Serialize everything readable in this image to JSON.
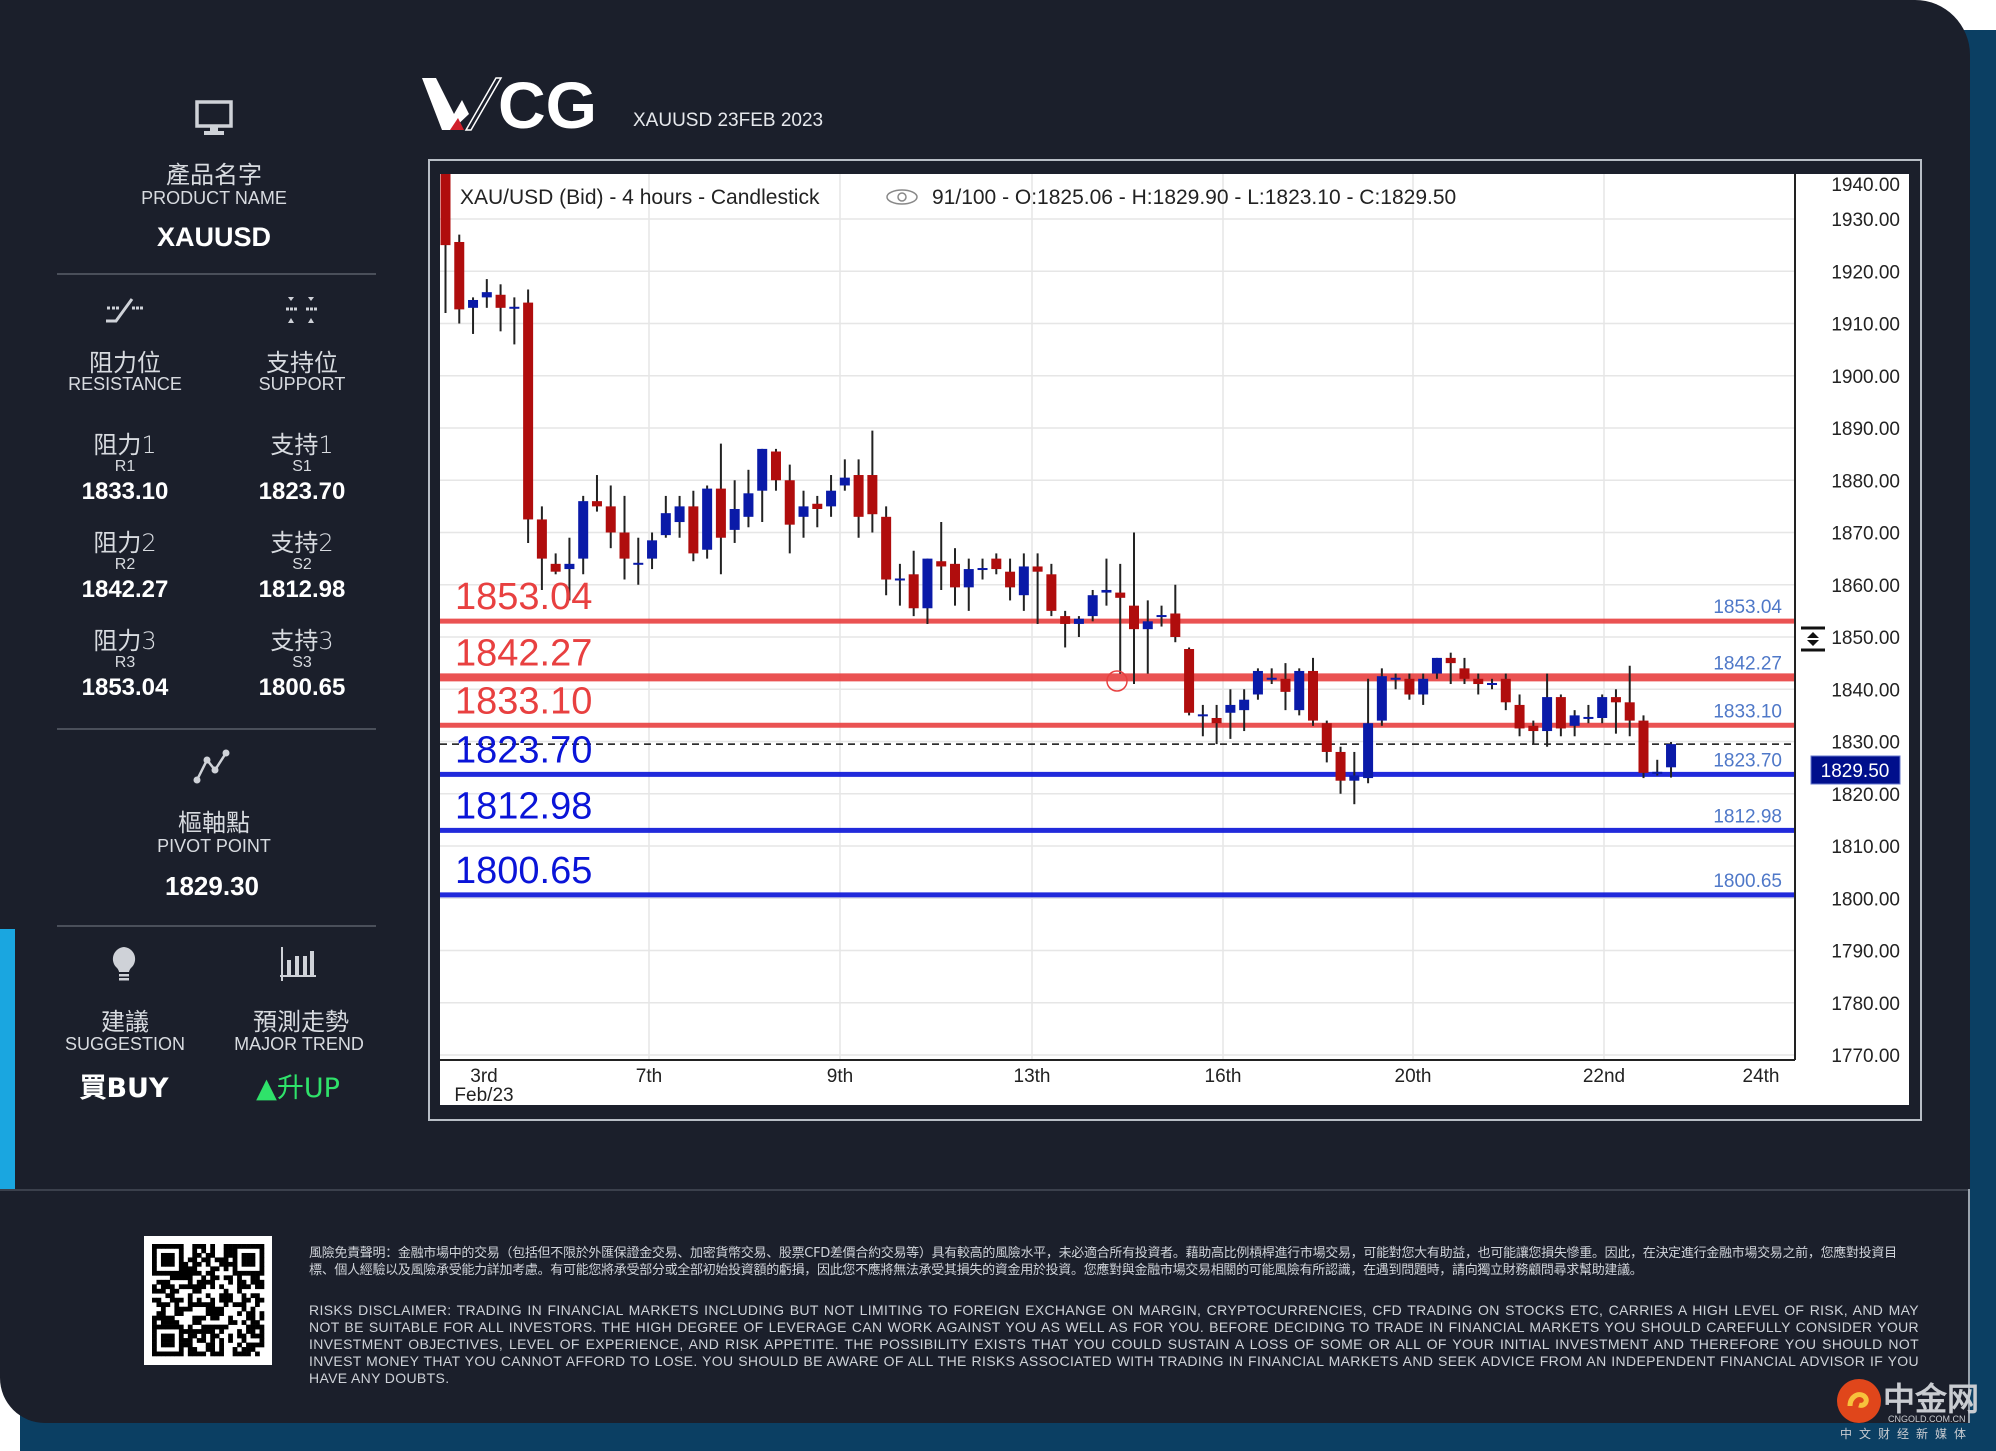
{
  "header": {
    "logo_text": "WCG",
    "subtitle": "XAUUSD 23FEB 2023"
  },
  "product": {
    "label_zh": "產品名字",
    "label_en": "PRODUCT NAME",
    "value": "XAUUSD"
  },
  "resistance": {
    "label_zh": "阻力位",
    "label_en": "RESISTANCE",
    "items": [
      {
        "label_zh": "阻力1",
        "code": "R1",
        "value": "1833.10"
      },
      {
        "label_zh": "阻力2",
        "code": "R2",
        "value": "1842.27"
      },
      {
        "label_zh": "阻力3",
        "code": "R3",
        "value": "1853.04"
      }
    ]
  },
  "support": {
    "label_zh": "支持位",
    "label_en": "SUPPORT",
    "items": [
      {
        "label_zh": "支持1",
        "code": "S1",
        "value": "1823.70"
      },
      {
        "label_zh": "支持2",
        "code": "S2",
        "value": "1812.98"
      },
      {
        "label_zh": "支持3",
        "code": "S3",
        "value": "1800.65"
      }
    ]
  },
  "pivot": {
    "label_zh": "樞軸點",
    "label_en": "PIVOT POINT",
    "value": "1829.30"
  },
  "suggestion": {
    "label_zh": "建議",
    "label_en": "SUGGESTION",
    "value": "買BUY"
  },
  "trend": {
    "label_zh": "預測走勢",
    "label_en": "MAJOR TREND",
    "value": "升UP",
    "color": "#2fe26a"
  },
  "chart_data": {
    "type": "candlestick",
    "title": "XAU/USD (Bid) - 4 hours - Candlestick",
    "info": "91/100 - O:1825.06 - H:1829.90 - L:1823.10 - C:1829.50",
    "ylim": [
      1770,
      1940
    ],
    "y_ticks": [
      "1940.00",
      "1930.00",
      "1920.00",
      "1910.00",
      "1900.00",
      "1890.00",
      "1880.00",
      "1870.00",
      "1860.00",
      "1850.00",
      "1840.00",
      "1830.00",
      "1820.00",
      "1810.00",
      "1800.00",
      "1790.00",
      "1780.00",
      "1770.00"
    ],
    "x_ticks": [
      "3rd",
      "7th",
      "9th",
      "13th",
      "16th",
      "20th",
      "22nd",
      "24th"
    ],
    "x_sub_label": "Feb/23",
    "grid": true,
    "up_color": "#0a1aa8",
    "down_color": "#b00d0d",
    "last_price": "1829.50",
    "levels": [
      {
        "label": "1853.04",
        "value": 1853.04,
        "color": "#e84040"
      },
      {
        "label": "1842.27",
        "value": 1842.27,
        "color": "#e84040"
      },
      {
        "label": "1833.10",
        "value": 1833.1,
        "color": "#e84040"
      },
      {
        "label": "1823.70",
        "value": 1823.7,
        "color": "#0a14d8"
      },
      {
        "label": "1812.98",
        "value": 1812.98,
        "color": "#0a14d8"
      },
      {
        "label": "1800.65",
        "value": 1800.65,
        "color": "#0a14d8"
      }
    ],
    "ohlc": [
      [
        1940,
        1941,
        1912,
        1925
      ],
      [
        1925.6,
        1927,
        1910,
        1912.7
      ],
      [
        1913,
        1915,
        1908,
        1914.5
      ],
      [
        1915,
        1918.5,
        1913,
        1916
      ],
      [
        1915.5,
        1917.5,
        1908.5,
        1913
      ],
      [
        1913,
        1915,
        1906,
        1913.2
      ],
      [
        1914,
        1916.5,
        1868,
        1872.5
      ],
      [
        1872.5,
        1875,
        1859,
        1865
      ],
      [
        1864,
        1866,
        1862,
        1862.5
      ],
      [
        1863,
        1869,
        1857,
        1864
      ],
      [
        1865,
        1877,
        1862,
        1876
      ],
      [
        1876,
        1881,
        1874,
        1875
      ],
      [
        1875,
        1879,
        1867,
        1870
      ],
      [
        1870,
        1877,
        1861,
        1865
      ],
      [
        1864,
        1869,
        1860,
        1864.2
      ],
      [
        1865,
        1870,
        1863,
        1868.5
      ],
      [
        1869.5,
        1877,
        1869,
        1873.7
      ],
      [
        1872,
        1877,
        1869,
        1875
      ],
      [
        1875,
        1878,
        1864.5,
        1866
      ],
      [
        1866.7,
        1879,
        1865,
        1878.4
      ],
      [
        1878.4,
        1887,
        1862,
        1869
      ],
      [
        1870.5,
        1880,
        1868,
        1874.5
      ],
      [
        1873,
        1882,
        1871,
        1877.5
      ],
      [
        1878,
        1886,
        1872,
        1886
      ],
      [
        1885.5,
        1886,
        1878,
        1880
      ],
      [
        1880,
        1883,
        1866,
        1871.5
      ],
      [
        1873,
        1878,
        1869,
        1875
      ],
      [
        1875.5,
        1877,
        1871,
        1874.5
      ],
      [
        1875,
        1881,
        1873,
        1878
      ],
      [
        1879,
        1884,
        1878,
        1880.5
      ],
      [
        1881,
        1884,
        1869,
        1873
      ],
      [
        1881,
        1889.5,
        1870,
        1873.5
      ],
      [
        1873,
        1875,
        1858,
        1861
      ],
      [
        1861,
        1864,
        1856,
        1861.2
      ],
      [
        1862,
        1866.5,
        1854,
        1855.5
      ],
      [
        1855.5,
        1865,
        1852.5,
        1865
      ],
      [
        1864.5,
        1872,
        1859,
        1863.5
      ],
      [
        1864,
        1867,
        1856,
        1859.5
      ],
      [
        1859.5,
        1865,
        1855,
        1863
      ],
      [
        1863,
        1865,
        1861,
        1863.2
      ],
      [
        1865,
        1866,
        1862,
        1863
      ],
      [
        1862.5,
        1865,
        1857,
        1859.5
      ],
      [
        1858,
        1866,
        1855,
        1863.5
      ],
      [
        1863.5,
        1866,
        1852.5,
        1862.5
      ],
      [
        1862,
        1864,
        1854,
        1855
      ],
      [
        1854,
        1855,
        1848,
        1852.5
      ],
      [
        1852.5,
        1854,
        1850,
        1853.5
      ],
      [
        1854,
        1859,
        1853,
        1858
      ],
      [
        1858.5,
        1865,
        1856,
        1859
      ],
      [
        1858.5,
        1864,
        1843,
        1857.5
      ],
      [
        1856,
        1870,
        1841,
        1851.5
      ],
      [
        1851.5,
        1857,
        1843,
        1853
      ],
      [
        1854,
        1856,
        1852,
        1854.2
      ],
      [
        1854.5,
        1860,
        1849,
        1850
      ],
      [
        1847.7,
        1848,
        1835,
        1835.5
      ],
      [
        1835,
        1837,
        1831,
        1835.2
      ],
      [
        1834.5,
        1837,
        1829.5,
        1833.5
      ],
      [
        1835.5,
        1840,
        1830.5,
        1837
      ],
      [
        1836,
        1840,
        1832,
        1838
      ],
      [
        1839,
        1844,
        1838,
        1843.5
      ],
      [
        1842,
        1844,
        1841,
        1842.2
      ],
      [
        1842,
        1845,
        1836,
        1839.5
      ],
      [
        1836,
        1844,
        1835,
        1843.5
      ],
      [
        1843.5,
        1846,
        1833,
        1834
      ],
      [
        1833.5,
        1834,
        1826,
        1828
      ],
      [
        1828,
        1829,
        1820,
        1822.5
      ],
      [
        1822.5,
        1828,
        1818,
        1823.5
      ],
      [
        1823,
        1842,
        1822,
        1833.5
      ],
      [
        1834,
        1844,
        1833,
        1842.5
      ],
      [
        1842,
        1843,
        1840,
        1842.2
      ],
      [
        1842,
        1843,
        1838,
        1839
      ],
      [
        1839,
        1843,
        1837,
        1842
      ],
      [
        1843,
        1846,
        1842,
        1846
      ],
      [
        1846,
        1847,
        1841,
        1845
      ],
      [
        1844,
        1846,
        1841,
        1842
      ],
      [
        1842,
        1843,
        1839,
        1841
      ],
      [
        1841,
        1842,
        1840,
        1841.2
      ],
      [
        1842,
        1843,
        1836,
        1837.5
      ],
      [
        1837,
        1839,
        1831,
        1832.5
      ],
      [
        1833,
        1834,
        1829.5,
        1832
      ],
      [
        1832,
        1843,
        1829,
        1838.5
      ],
      [
        1838.5,
        1839,
        1831,
        1832.5
      ],
      [
        1833,
        1836,
        1831,
        1835
      ],
      [
        1834.5,
        1837,
        1833.5,
        1834.7
      ],
      [
        1834.5,
        1839,
        1833.5,
        1838.5
      ],
      [
        1838.5,
        1840,
        1831.5,
        1837.5
      ],
      [
        1837.5,
        1844.5,
        1831,
        1834
      ],
      [
        1834,
        1835,
        1823,
        1824
      ],
      [
        1824,
        1826.5,
        1823.5,
        1824.2
      ],
      [
        1825.06,
        1829.9,
        1823.1,
        1829.5
      ]
    ]
  },
  "disclaimer": {
    "zh": "風險免責聲明：金融市場中的交易（包括但不限於外匯保證金交易、加密貨幣交易、股票CFD差價合約交易等）具有較高的風險水平，未必適合所有投資者。藉助高比例槓桿進行市場交易，可能對您大有助益，也可能讓您損失慘重。因此，在決定進行金融市場交易之前，您應對投資目標、個人經驗以及風險承受能力詳加考慮。有可能您將承受部分或全部初始投資額的虧損，因此您不應將無法承受其損失的資金用於投資。您應對與金融市場交易相關的可能風險有所認識，在遇到問題時，請向獨立財務顧問尋求幫助建議。",
    "en": "RISKS DISCLAIMER: TRADING IN FINANCIAL MARKETS INCLUDING BUT NOT LIMITING TO FOREIGN EXCHANGE ON MARGIN, CRYPTOCURRENCIES, CFD TRADING ON STOCKS ETC, CARRIES A HIGH LEVEL OF RISK, AND MAY NOT BE SUITABLE FOR ALL INVESTORS. THE HIGH DEGREE OF LEVERAGE CAN WORK AGAINST YOU AS WELL AS FOR YOU. BEFORE DECIDING TO TRADE IN FINANCIAL MARKETS YOU SHOULD CAREFULLY CONSIDER YOUR INVESTMENT OBJECTIVES, LEVEL OF EXPERIENCE, AND RISK APPETITE. THE POSSIBILITY EXISTS THAT YOU COULD SUSTAIN A LOSS OF SOME OR ALL OF YOUR INITIAL INVESTMENT AND THEREFORE YOU SHOULD NOT INVEST MONEY THAT YOU CANNOT AFFORD TO LOSE. YOU SHOULD BE AWARE OF ALL THE RISKS ASSOCIATED WITH TRADING IN FINANCIAL MARKETS AND SEEK ADVICE FROM AN INDEPENDENT FINANCIAL ADVISOR IF YOU HAVE ANY DOUBTS."
  },
  "watermark": {
    "name": "中金网",
    "domain": "CNGOLD.COM.CN",
    "tagline": "中文财经新媒体"
  }
}
